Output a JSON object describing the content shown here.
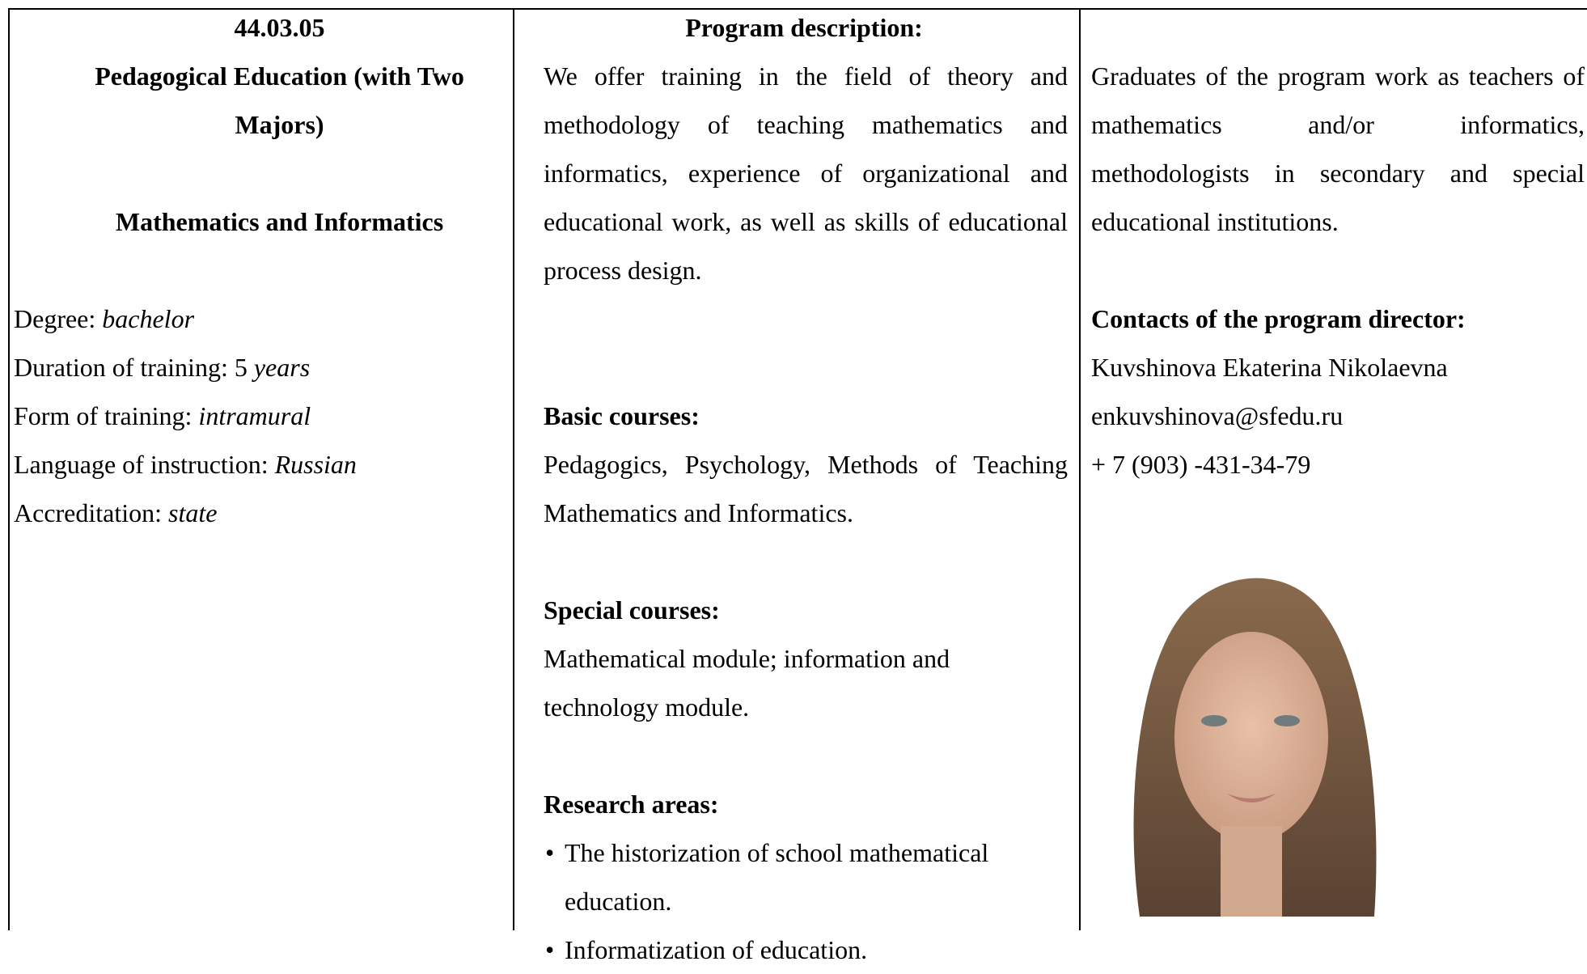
{
  "table": {
    "col1": {
      "code": "44.03.05",
      "title": "Pedagogical Education (with Two Majors)",
      "profile": "Mathematics and Informatics",
      "facts": [
        {
          "label": "Degree:",
          "value": "bachelor"
        },
        {
          "label": "Duration of training: 5",
          "value": "years"
        },
        {
          "label": "Form of training:",
          "value": "intramural"
        },
        {
          "label": "Language of instruction:",
          "value": "Russian"
        },
        {
          "label": "Accreditation:",
          "value": "state"
        }
      ]
    },
    "col2": {
      "heading": "Program description:",
      "description": "We offer training in the field of theory and methodology of teaching mathematics and informatics, experience of organizational and educational work, as well as skills of educational process design.",
      "basic_heading": "Basic courses:",
      "basic_text": "Pedagogics, Psychology, Methods of Teaching Mathematics and Informatics.",
      "special_heading": "Special courses:",
      "special_text": "Mathematical module; information and technology module.",
      "research_heading": "Research areas:",
      "research_items": [
        "The historization of school mathematical education.",
        "Informatization of education."
      ]
    },
    "col3": {
      "careers": "Graduates of the program work as teachers of mathematics and/or informatics, methodologists in secondary and special educational institutions.",
      "contacts_heading": "Contacts of the program director:",
      "name": "Kuvshinova Ekaterina Nikolaevna",
      "email": "enkuvshinova@sfedu.ru",
      "phone": "+ 7 (903) -431-34-79"
    }
  }
}
